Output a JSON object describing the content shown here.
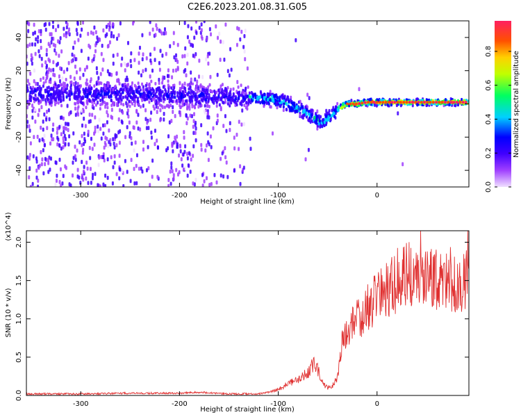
{
  "title": "C2E6.2023.201.08.31.G05",
  "chart_data": [
    {
      "type": "heatmap",
      "xlabel": "Height of straight line (km)",
      "ylabel": "Frequency (Hz)",
      "xlim": [
        -355,
        93
      ],
      "ylim": [
        -50,
        50
      ],
      "xticks": [
        -300,
        -200,
        -100,
        0
      ],
      "xtick_labels": [
        "-300",
        "-200",
        "-100",
        "0"
      ],
      "yticks": [
        -40,
        -20,
        0,
        20,
        40
      ],
      "ytick_labels": [
        "-40",
        "-20",
        "0",
        "20",
        "40"
      ],
      "colorbar": {
        "label": "Normalized spectral amplitude",
        "range": [
          0,
          0.98
        ],
        "ticks": [
          0.0,
          0.2,
          0.4,
          0.6,
          0.8
        ],
        "tick_labels": [
          "0.0",
          "0.2",
          "0.4",
          "0.6",
          "0.8"
        ],
        "colors": [
          "#f0e0ff",
          "#a040ff",
          "#4000ff",
          "#0000ff",
          "#00d0ff",
          "#00ff60",
          "#c0ff00",
          "#ffd000",
          "#ff5000",
          "#ff2060"
        ]
      },
      "ridge": {
        "x": [
          -355,
          -300,
          -250,
          -200,
          -150,
          -130,
          -110,
          -100,
          -90,
          -80,
          -70,
          -60,
          -55,
          -50,
          -45,
          -40,
          -30,
          -20,
          -10,
          0,
          20,
          40,
          60,
          93
        ],
        "freq": [
          6,
          6,
          6,
          5,
          4,
          4,
          3,
          2,
          0,
          -3,
          -6,
          -10,
          -12,
          -9,
          -6,
          -3,
          0,
          0,
          1,
          1,
          1,
          1,
          1,
          1
        ]
      }
    },
    {
      "type": "line",
      "xlabel": "Height of straight line (km)",
      "ylabel": "SNR (10 * v/v)",
      "y_multiplier": "(x10^4)",
      "xlim": [
        -355,
        93
      ],
      "ylim": [
        0,
        2.15
      ],
      "xticks": [
        -300,
        -200,
        -100,
        0
      ],
      "xtick_labels": [
        "-300",
        "-200",
        "-100",
        "0"
      ],
      "yticks": [
        0.0,
        0.5,
        1.0,
        1.5,
        2.0
      ],
      "ytick_labels": [
        "0.0",
        "0.5",
        "1.0",
        "1.5",
        "2.0"
      ],
      "color": "#e03030",
      "x": [
        -355,
        -300,
        -250,
        -200,
        -180,
        -150,
        -120,
        -110,
        -100,
        -90,
        -80,
        -70,
        -65,
        -60,
        -55,
        -50,
        -45,
        -40,
        -35,
        -30,
        -25,
        -20,
        -15,
        -10,
        -5,
        0,
        10,
        20,
        25,
        30,
        40,
        50,
        60,
        70,
        80,
        93
      ],
      "y": [
        0.02,
        0.02,
        0.03,
        0.03,
        0.04,
        0.02,
        0.02,
        0.04,
        0.08,
        0.15,
        0.22,
        0.3,
        0.4,
        0.35,
        0.15,
        0.1,
        0.12,
        0.25,
        0.7,
        0.85,
        0.95,
        1.0,
        1.05,
        1.15,
        1.2,
        1.3,
        1.35,
        1.5,
        1.55,
        1.6,
        1.5,
        1.55,
        1.5,
        1.45,
        1.5,
        1.5
      ]
    }
  ]
}
